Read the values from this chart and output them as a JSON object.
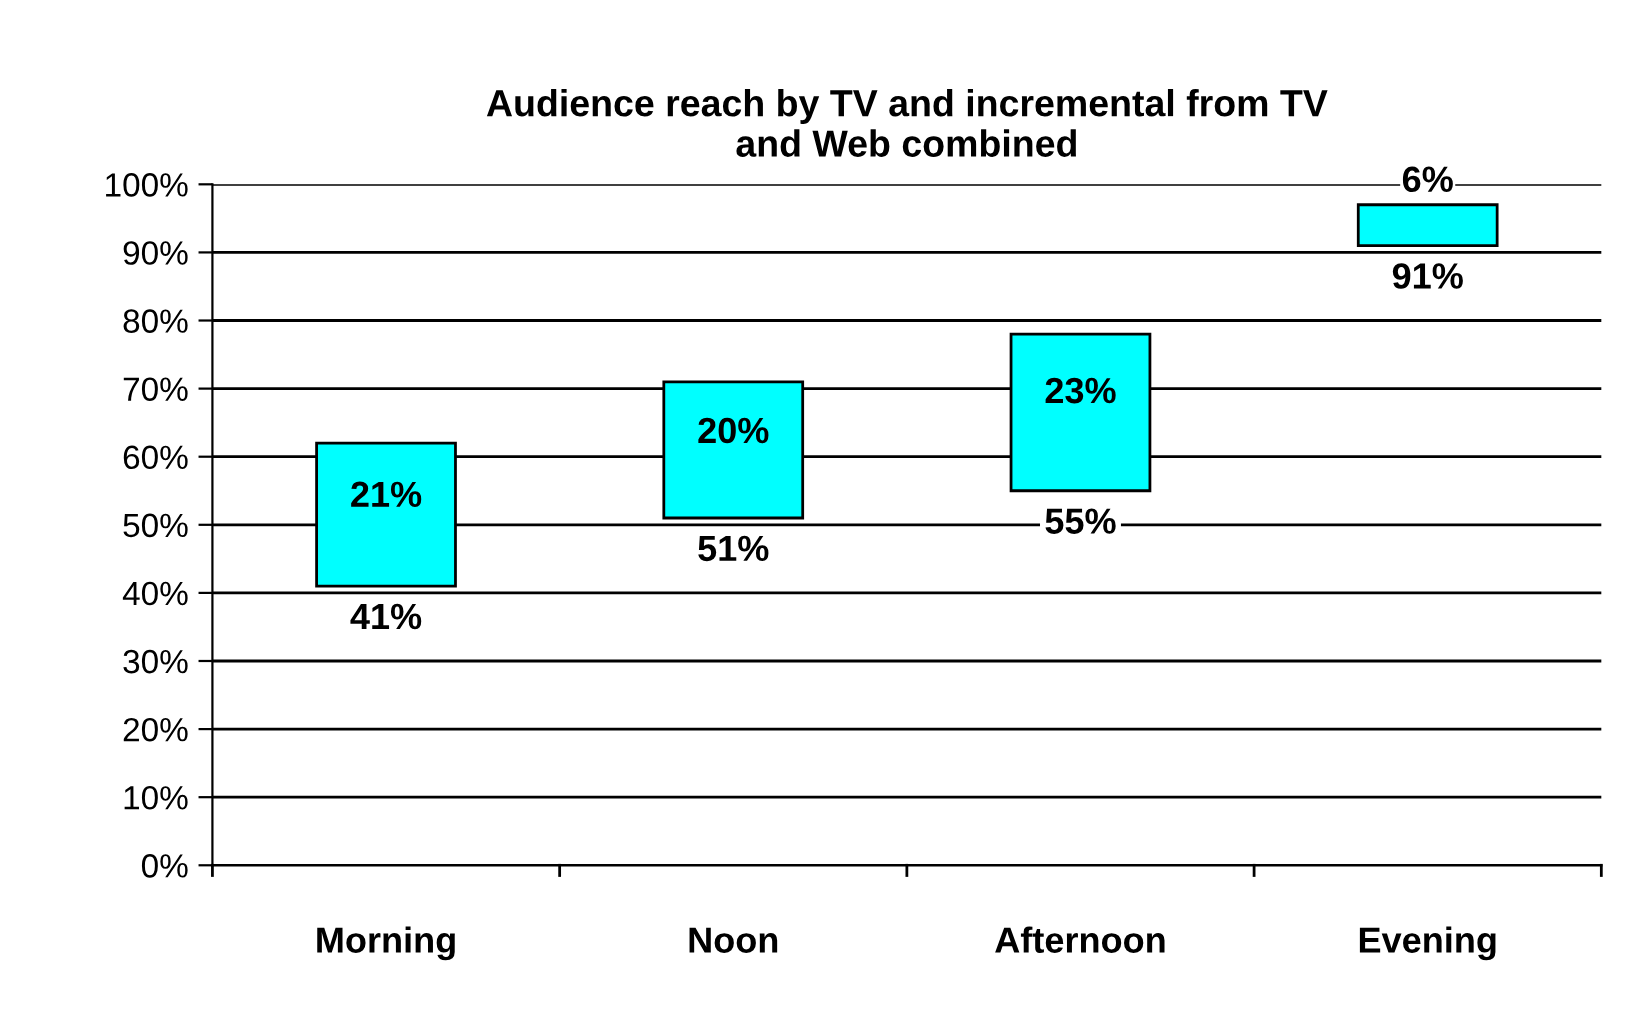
{
  "chart_data": {
    "type": "bar",
    "title": "Audience reach by TV and incremental from TV\nand Web combined",
    "categories": [
      "Morning",
      "Noon",
      "Afternoon",
      "Evening"
    ],
    "base": [
      41,
      51,
      55,
      91
    ],
    "values": [
      21,
      20,
      23,
      6
    ],
    "value_labels": [
      "21%",
      "20%",
      "23%",
      "6%"
    ],
    "color": "#00ffff",
    "annotations": [
      {
        "text": "41%",
        "x": "Morning",
        "y": 41
      },
      {
        "text": "51%",
        "x": "Noon",
        "y": 51
      },
      {
        "text": "55%",
        "x": "Afternoon",
        "y": 55
      },
      {
        "text": "91%",
        "x": "Evening",
        "y": 91
      }
    ],
    "ylim": [
      0,
      100
    ],
    "yticks": [
      {
        "value": 0,
        "label": "0%"
      },
      {
        "value": 10,
        "label": "10%"
      },
      {
        "value": 20,
        "label": "20%"
      },
      {
        "value": 30,
        "label": "30%"
      },
      {
        "value": 40,
        "label": "40%"
      },
      {
        "value": 50,
        "label": "50%"
      },
      {
        "value": 60,
        "label": "60%"
      },
      {
        "value": 70,
        "label": "70%"
      },
      {
        "value": 80,
        "label": "80%"
      },
      {
        "value": 90,
        "label": "90%"
      },
      {
        "value": 100,
        "label": "100%"
      }
    ],
    "grid": "y"
  }
}
